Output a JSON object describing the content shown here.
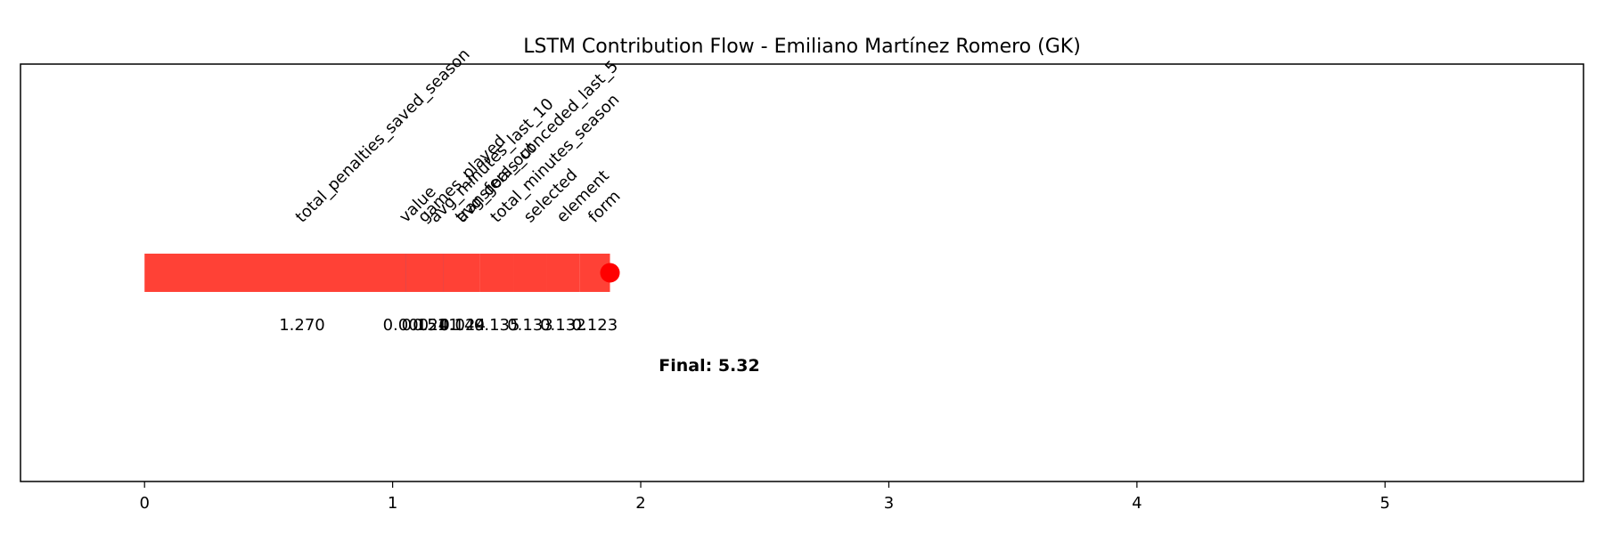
{
  "chart_data": {
    "type": "bar",
    "orientation": "horizontal-waterfall",
    "title": "LSTM Contribution Flow - Emiliano Martínez Romero (GK)",
    "xlabel": "",
    "ylabel": "",
    "xlim": [
      -0.5,
      5.8
    ],
    "x_ticks": [
      0,
      1,
      2,
      3,
      4,
      5
    ],
    "grid": false,
    "segments": [
      {
        "feature": "total_penalties_saved_season",
        "value": 1.27,
        "value_label": "1.270",
        "color": "#ff4136"
      },
      {
        "feature": "avg_goals_conceded_last_5",
        "value": 0.024,
        "value_label": "0.024",
        "color": "#ff4136"
      },
      {
        "feature": "avg_minutes_last_10",
        "value": -0.241,
        "value_label": "0.241",
        "color": "#0074d9"
      },
      {
        "feature": "value",
        "value": 0.0,
        "value_label": "0.000",
        "color": "#ff4136"
      },
      {
        "feature": "games_played",
        "value": 0.151,
        "value_label": "0.151",
        "color": "#ff4136"
      },
      {
        "feature": "transfers_out",
        "value": 0.149,
        "value_label": "0.149",
        "color": "#ff4136"
      },
      {
        "feature": "total_minutes_season",
        "value": 0.135,
        "value_label": "0.135",
        "color": "#ff4136"
      },
      {
        "feature": "selected",
        "value": 0.133,
        "value_label": "0.133",
        "color": "#ff4136"
      },
      {
        "feature": "element",
        "value": 0.132,
        "value_label": "0.132",
        "color": "#ff4136"
      },
      {
        "feature": "form",
        "value": 0.123,
        "value_label": "0.123",
        "color": "#ff4136"
      }
    ],
    "end_marker_color": "#ff0000",
    "final_label": "Final: 5.32"
  }
}
